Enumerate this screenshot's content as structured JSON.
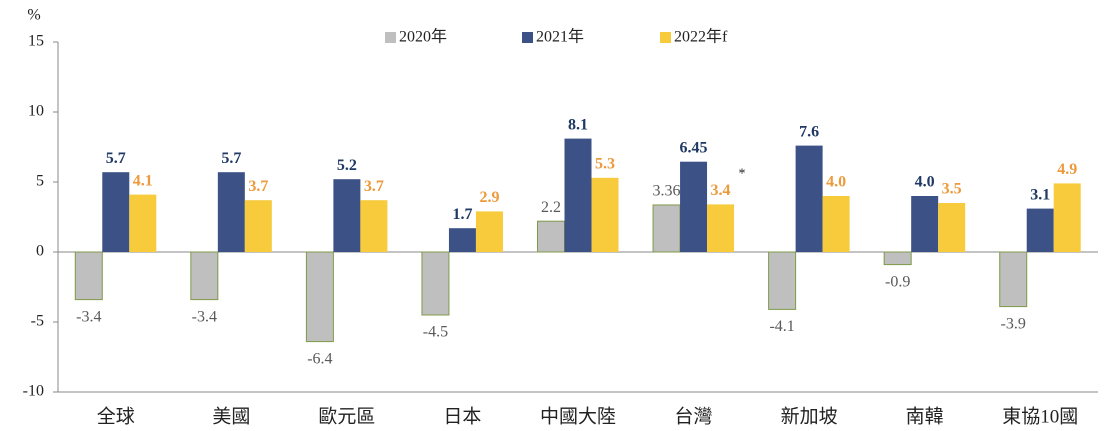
{
  "chart_data": {
    "type": "bar",
    "y_label": "%",
    "categories": [
      "全球",
      "美國",
      "歐元區",
      "日本",
      "中國大陸",
      "台灣",
      "新加坡",
      "南韓",
      "東協10國"
    ],
    "series": [
      {
        "name": "2020年",
        "color": "#bfbfbf",
        "label_color": "#595959",
        "values": [
          -3.4,
          -3.4,
          -6.4,
          -4.5,
          2.2,
          3.36,
          -4.1,
          -0.9,
          -3.9
        ]
      },
      {
        "name": "2021年",
        "color": "#3c5185",
        "label_color": "#1f3864",
        "values": [
          5.7,
          5.7,
          5.2,
          1.7,
          8.1,
          6.45,
          7.6,
          4.0,
          3.1
        ],
        "value_labels": [
          "5.7",
          "5.7",
          "5.2",
          "1.7",
          "8.1",
          "6.45",
          "7.6",
          "4.0",
          "3.1"
        ]
      },
      {
        "name": "2022年f",
        "color": "#f7cb3c",
        "label_color": "#ec9a3a",
        "values": [
          4.1,
          3.7,
          3.7,
          2.9,
          5.3,
          3.4,
          4.0,
          3.5,
          4.9
        ],
        "value_labels": [
          "4.1",
          "3.7",
          "3.7",
          "2.9",
          "5.3",
          "3.4",
          "4.0",
          "3.5",
          "4.9"
        ]
      }
    ],
    "annotation": "*",
    "ylim": [
      -10,
      15
    ],
    "yticks": [
      -10,
      -5,
      0,
      5,
      10,
      15
    ],
    "legend": "top"
  }
}
